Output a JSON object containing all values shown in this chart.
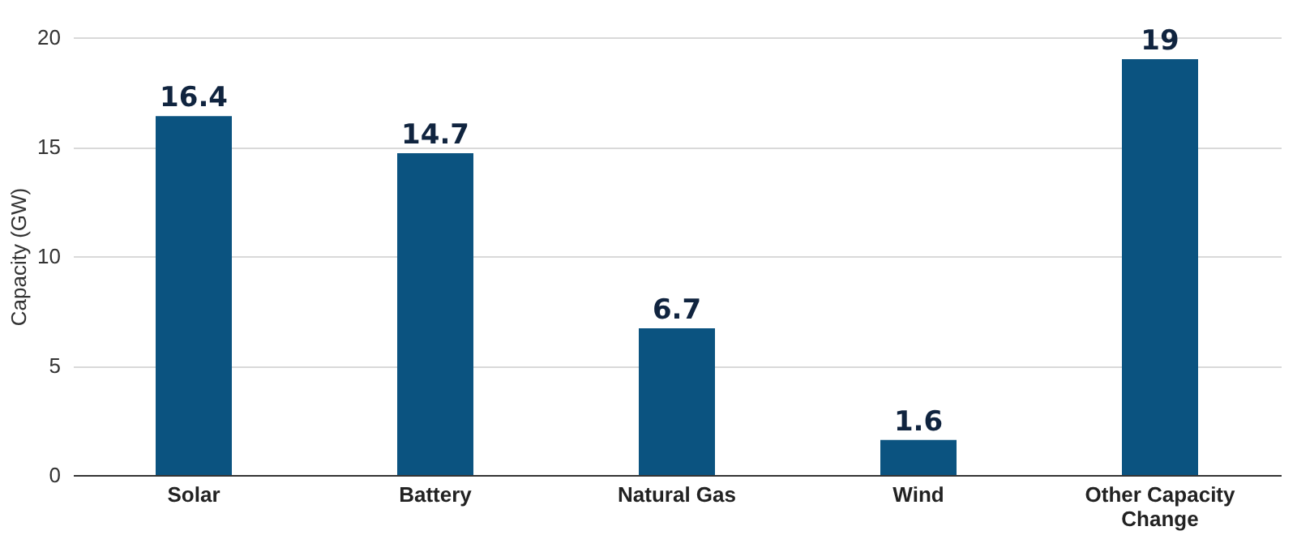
{
  "chart_data": {
    "type": "bar",
    "ylabel": "Capacity (GW)",
    "categories": [
      "Solar",
      "Battery",
      "Natural Gas",
      "Wind",
      "Other Capacity Change"
    ],
    "values": [
      16.4,
      14.7,
      6.7,
      1.6,
      19
    ],
    "color": "#0b5380",
    "ylim": [
      0,
      20
    ],
    "yticks": [
      0,
      5,
      10,
      15,
      20
    ],
    "grid": "y",
    "data_labels": true
  }
}
